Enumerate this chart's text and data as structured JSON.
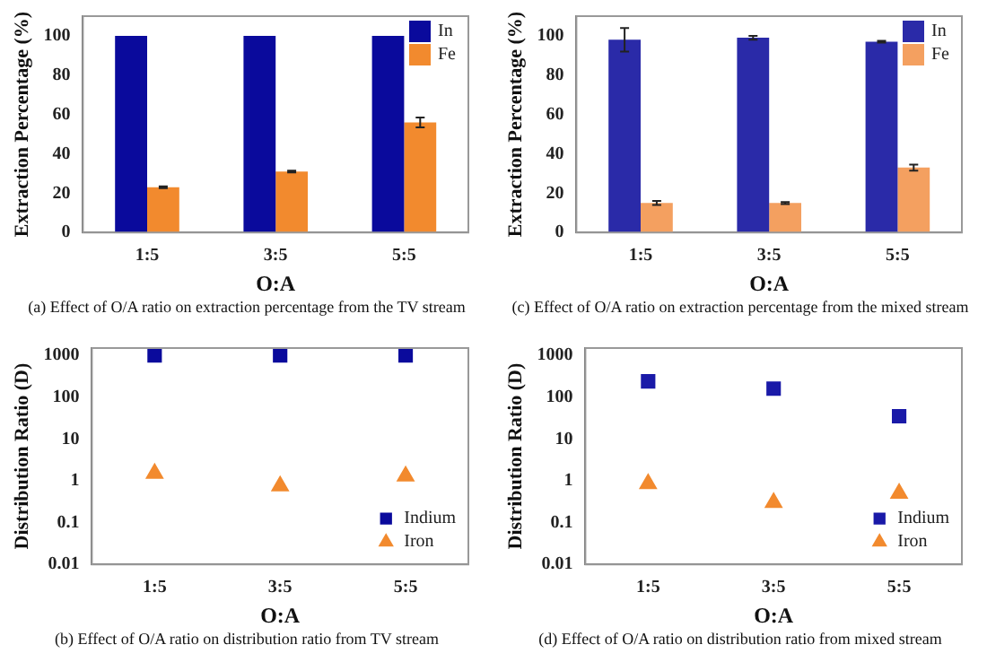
{
  "chart_data": [
    {
      "type": "bar",
      "xlabel": "O:A",
      "ylabel": "Extraction Percentage (%)",
      "categories": [
        "1:5",
        "3:5",
        "5:5"
      ],
      "ylim": [
        0,
        110
      ],
      "yticks": [
        0,
        20,
        40,
        60,
        80,
        100
      ],
      "grid": false,
      "legend": "top right",
      "annotations": [
        "(a) Effect of O/A ratio on extraction percentage from the TV stream"
      ],
      "series": [
        {
          "name": "In",
          "color": "#0a0a9c",
          "values": [
            100,
            100,
            100
          ]
        },
        {
          "name": "Fe",
          "color": "#f28a2e",
          "values": [
            23,
            31,
            56
          ],
          "errors": [
            0.5,
            0.5,
            2.5
          ]
        }
      ]
    },
    {
      "type": "bar",
      "xlabel": "O:A",
      "ylabel": "Extraction Percentage (%)",
      "categories": [
        "1:5",
        "3:5",
        "5:5"
      ],
      "ylim": [
        0,
        110
      ],
      "yticks": [
        0,
        20,
        40,
        60,
        80,
        100
      ],
      "grid": false,
      "legend": "top right",
      "annotations": [
        "(c) Effect of O/A ratio on extraction percentage from the mixed stream"
      ],
      "series": [
        {
          "name": "In",
          "color": "#2a2aa8",
          "values": [
            98,
            99,
            97
          ],
          "errors": [
            6,
            1,
            0.5
          ]
        },
        {
          "name": "Fe",
          "color": "#f4a060",
          "values": [
            15,
            15,
            33
          ],
          "errors": [
            1,
            0.5,
            1.5
          ]
        }
      ]
    },
    {
      "type": "scatter",
      "xlabel": "O:A",
      "ylabel": "Distribution Ratio (D)",
      "categories": [
        "1:5",
        "3:5",
        "5:5"
      ],
      "log": true,
      "ylim": [
        0.01,
        1500
      ],
      "yticks": [
        0.01,
        0.1,
        1,
        10,
        100,
        1000
      ],
      "grid": false,
      "legend": "bottom right",
      "annotations": [
        "(b) Effect of O/A ratio on distribution ratio from TV stream"
      ],
      "series": [
        {
          "name": "Indium",
          "color": "#0a0a9c",
          "marker": "square",
          "values": [
            1000,
            1000,
            1000
          ]
        },
        {
          "name": "Iron",
          "color": "#f28a2e",
          "marker": "triangle",
          "values": [
            1.5,
            0.75,
            1.3
          ]
        }
      ]
    },
    {
      "type": "scatter",
      "xlabel": "O:A",
      "ylabel": "Distribution Ratio (D)",
      "categories": [
        "1:5",
        "3:5",
        "5:5"
      ],
      "log": true,
      "ylim": [
        0.01,
        1500
      ],
      "yticks": [
        0.01,
        0.1,
        1,
        10,
        100,
        1000
      ],
      "grid": false,
      "legend": "bottom right",
      "annotations": [
        "(d) Effect of O/A ratio on distribution ratio from mixed stream"
      ],
      "series": [
        {
          "name": "Indium",
          "color": "#1a1aa8",
          "marker": "square",
          "values": [
            240,
            160,
            35
          ]
        },
        {
          "name": "Iron",
          "color": "#f28a2e",
          "marker": "triangle",
          "values": [
            0.85,
            0.3,
            0.5
          ]
        }
      ]
    }
  ]
}
